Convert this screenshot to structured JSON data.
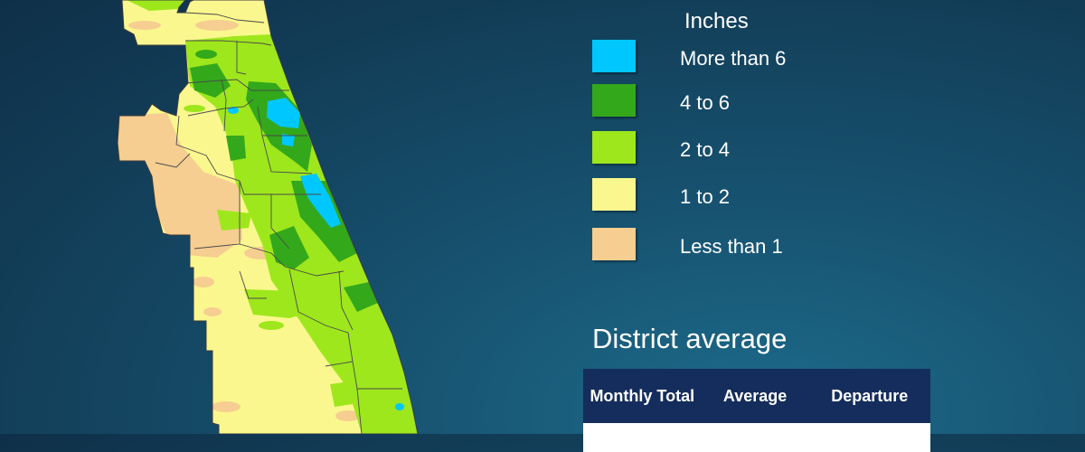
{
  "legend": {
    "title": "Inches",
    "items": [
      {
        "label": "More than 6",
        "color": "#00c8ff"
      },
      {
        "label": "4 to 6",
        "color": "#33a81b"
      },
      {
        "label": "2 to 4",
        "color": "#9ee71c"
      },
      {
        "label": "1 to 2",
        "color": "#faf78f"
      },
      {
        "label": "Less than 1",
        "color": "#f6ce91"
      }
    ]
  },
  "district_average": {
    "title": "District average",
    "columns": [
      "Monthly Total",
      "Average",
      "Departure"
    ]
  },
  "map": {
    "colors": {
      "outline": "#4a4a4a",
      "more_than_6": "#00c8ff",
      "four_to_6": "#33a81b",
      "two_to_4": "#9ee71c",
      "one_to_2": "#faf78f",
      "less_than_1": "#f6ce91"
    }
  }
}
